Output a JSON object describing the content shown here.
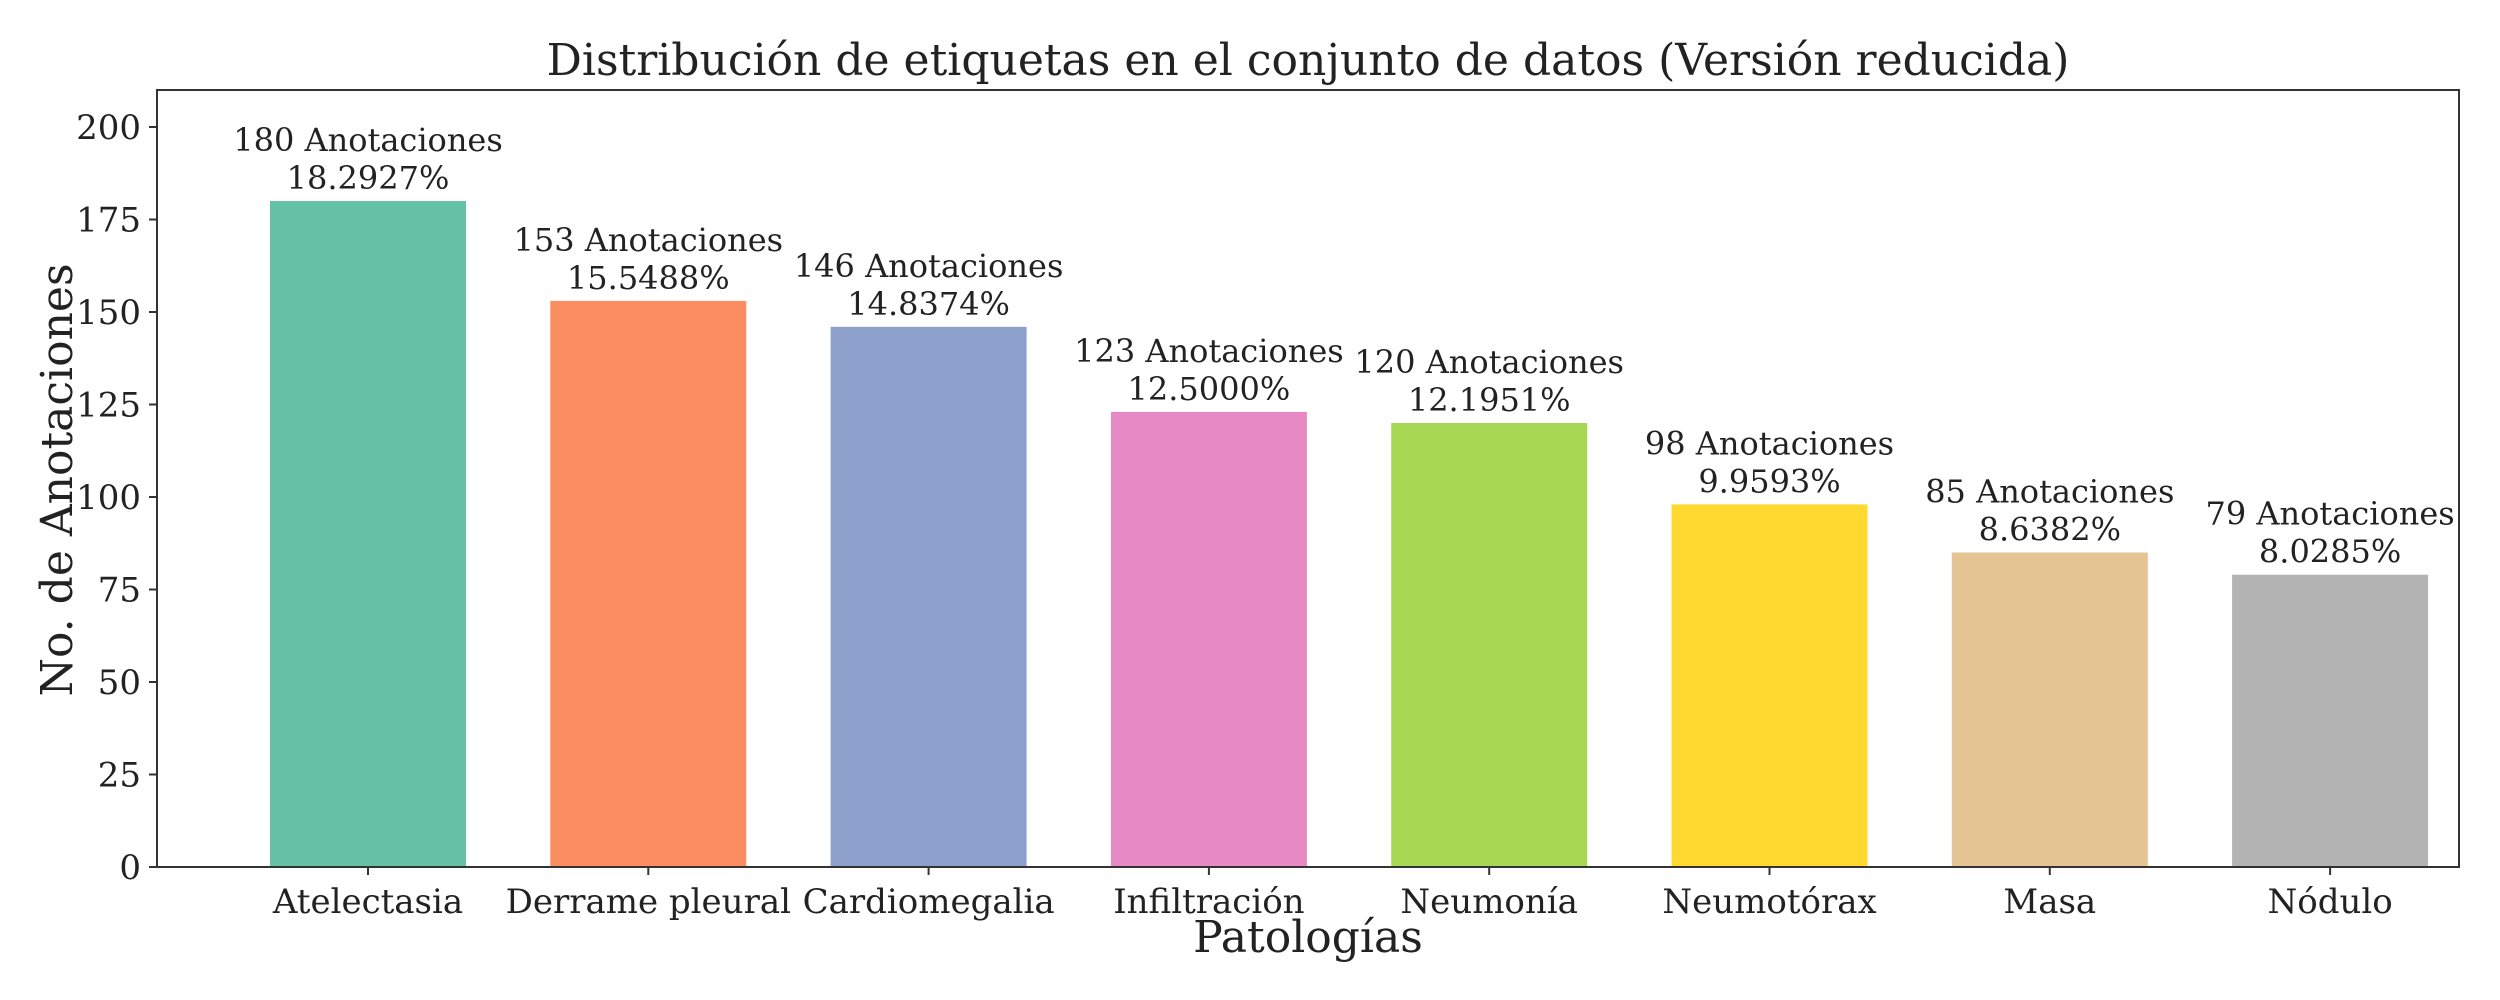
{
  "chart_data": {
    "type": "bar",
    "title": "Distribución de etiquetas en el conjunto de datos (Versión reducida)",
    "xlabel": "Patologías",
    "ylabel": "No. de Anotaciones",
    "categories": [
      "Atelectasia",
      "Derrame pleural",
      "Cardiomegalia",
      "Infiltración",
      "Neumonía",
      "Neumotórax",
      "Masa",
      "Nódulo"
    ],
    "values": [
      180,
      153,
      146,
      123,
      120,
      98,
      85,
      79
    ],
    "annotations": [
      "180 Anotaciones",
      "153 Anotaciones",
      "146 Anotaciones",
      "123 Anotaciones",
      "120 Anotaciones",
      "98 Anotaciones",
      "85 Anotaciones",
      "79 Anotaciones"
    ],
    "percentages": [
      "18.2927%",
      "15.5488%",
      "14.8374%",
      "12.5000%",
      "12.1951%",
      "9.9593%",
      "8.6382%",
      "8.0285%"
    ],
    "colors": [
      "#66c2a5",
      "#fc8d62",
      "#8da0cb",
      "#e78ac3",
      "#a6d854",
      "#ffd92f",
      "#e5c494",
      "#b3b3b3"
    ],
    "ylim": [
      0,
      210
    ],
    "yticks": [
      0,
      25,
      50,
      75,
      100,
      125,
      150,
      175,
      200
    ],
    "grid": false,
    "legend": "none"
  }
}
